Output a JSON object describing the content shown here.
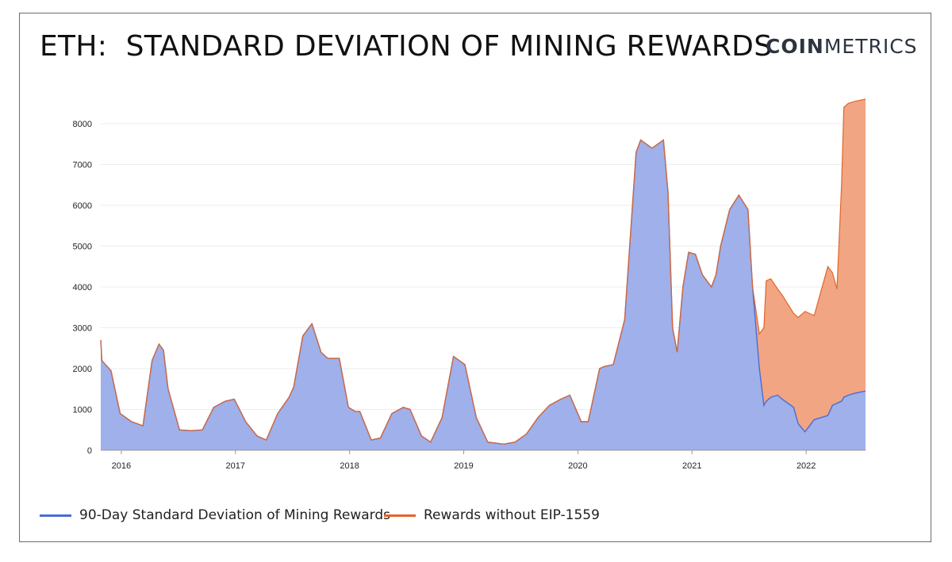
{
  "title": "ETH:  STANDARD DEVIATION OF MINING REWARDS",
  "logo": {
    "bold": "COIN",
    "rest": "METRICS",
    "icon": "coinmetrics-logo"
  },
  "colors": {
    "blue_line": "#4a6cd4",
    "blue_fill": "#9fb0ea",
    "orange_line": "#e0652a",
    "orange_fill": "#f2a582",
    "grid": "#ececec"
  },
  "chart_data": {
    "type": "area",
    "title": "ETH:  STANDARD DEVIATION OF MINING REWARDS",
    "xlabel": "",
    "ylabel": "",
    "ylim": [
      0,
      8700
    ],
    "xlim": [
      2015.82,
      2022.52
    ],
    "yticks": [
      0,
      1000,
      2000,
      3000,
      4000,
      5000,
      6000,
      7000,
      8000
    ],
    "xticks": [
      {
        "value": 2016,
        "label": "2016"
      },
      {
        "value": 2017,
        "label": "2017"
      },
      {
        "value": 2018,
        "label": "2018"
      },
      {
        "value": 2019,
        "label": "2019"
      },
      {
        "value": 2020,
        "label": "2020"
      },
      {
        "value": 2021,
        "label": "2021"
      },
      {
        "value": 2022,
        "label": "2022"
      }
    ],
    "grid": true,
    "legend_position": "bottom-left",
    "series": [
      {
        "name": "Rewards without EIP-1559",
        "color": "#e0652a",
        "x": [
          2015.82,
          2015.83,
          2015.86,
          2015.91,
          2015.99,
          2016.09,
          2016.19,
          2016.27,
          2016.33,
          2016.37,
          2016.41,
          2016.51,
          2016.61,
          2016.71,
          2016.81,
          2016.91,
          2016.99,
          2017.09,
          2017.19,
          2017.27,
          2017.37,
          2017.47,
          2017.51,
          2017.59,
          2017.67,
          2017.75,
          2017.81,
          2017.91,
          2017.99,
          2018.05,
          2018.09,
          2018.19,
          2018.27,
          2018.37,
          2018.47,
          2018.53,
          2018.63,
          2018.71,
          2018.81,
          2018.91,
          2019.01,
          2019.11,
          2019.21,
          2019.35,
          2019.45,
          2019.55,
          2019.65,
          2019.75,
          2019.85,
          2019.93,
          2020.03,
          2020.09,
          2020.19,
          2020.23,
          2020.31,
          2020.41,
          2020.51,
          2020.55,
          2020.65,
          2020.75,
          2020.79,
          2020.83,
          2020.87,
          2020.92,
          2020.97,
          2021.03,
          2021.09,
          2021.17,
          2021.21,
          2021.25,
          2021.33,
          2021.41,
          2021.49,
          2021.53,
          2021.59,
          2021.63,
          2021.65,
          2021.69,
          2021.75,
          2021.79,
          2021.89,
          2021.93,
          2021.99,
          2022.03,
          2022.07,
          2022.13,
          2022.19,
          2022.23,
          2022.27,
          2022.31,
          2022.33,
          2022.37,
          2022.43,
          2022.52
        ],
        "y": [
          2700,
          2200,
          2100,
          1950,
          900,
          700,
          600,
          2200,
          2600,
          2450,
          1500,
          500,
          480,
          500,
          1050,
          1200,
          1250,
          700,
          350,
          250,
          900,
          1300,
          1550,
          2800,
          3100,
          2400,
          2250,
          2250,
          1050,
          950,
          950,
          250,
          300,
          900,
          1050,
          1000,
          350,
          200,
          800,
          2300,
          2100,
          800,
          200,
          150,
          200,
          400,
          800,
          1100,
          1250,
          1350,
          700,
          700,
          2000,
          2050,
          2100,
          3200,
          7300,
          7600,
          7400,
          7600,
          6300,
          3000,
          2400,
          4000,
          4850,
          4800,
          4300,
          4000,
          4300,
          5000,
          5900,
          6250,
          5900,
          4000,
          2850,
          3000,
          4150,
          4200,
          3950,
          3800,
          3350,
          3250,
          3400,
          3350,
          3300,
          3900,
          4500,
          4350,
          3950,
          6500,
          8400,
          8500,
          8550,
          8600
        ]
      },
      {
        "name": "90-Day Standard Deviation of Mining Rewards",
        "color": "#4a6cd4",
        "x": [
          2015.82,
          2015.83,
          2015.86,
          2015.91,
          2015.99,
          2016.09,
          2016.19,
          2016.27,
          2016.33,
          2016.37,
          2016.41,
          2016.51,
          2016.61,
          2016.71,
          2016.81,
          2016.91,
          2016.99,
          2017.09,
          2017.19,
          2017.27,
          2017.37,
          2017.47,
          2017.51,
          2017.59,
          2017.67,
          2017.75,
          2017.81,
          2017.91,
          2017.99,
          2018.05,
          2018.09,
          2018.19,
          2018.27,
          2018.37,
          2018.47,
          2018.53,
          2018.63,
          2018.71,
          2018.81,
          2018.91,
          2019.01,
          2019.11,
          2019.21,
          2019.35,
          2019.45,
          2019.55,
          2019.65,
          2019.75,
          2019.85,
          2019.93,
          2020.03,
          2020.09,
          2020.19,
          2020.23,
          2020.31,
          2020.41,
          2020.51,
          2020.55,
          2020.65,
          2020.75,
          2020.79,
          2020.83,
          2020.87,
          2020.92,
          2020.97,
          2021.03,
          2021.09,
          2021.17,
          2021.21,
          2021.25,
          2021.33,
          2021.41,
          2021.49,
          2021.53,
          2021.59,
          2021.63,
          2021.65,
          2021.69,
          2021.75,
          2021.79,
          2021.89,
          2021.93,
          2021.99,
          2022.03,
          2022.07,
          2022.13,
          2022.19,
          2022.23,
          2022.27,
          2022.31,
          2022.33,
          2022.37,
          2022.43,
          2022.52
        ],
        "y": [
          2700,
          2200,
          2100,
          1950,
          900,
          700,
          600,
          2200,
          2600,
          2450,
          1500,
          500,
          480,
          500,
          1050,
          1200,
          1250,
          700,
          350,
          250,
          900,
          1300,
          1550,
          2800,
          3100,
          2400,
          2250,
          2250,
          1050,
          950,
          950,
          250,
          300,
          900,
          1050,
          1000,
          350,
          200,
          800,
          2300,
          2100,
          800,
          200,
          150,
          200,
          400,
          800,
          1100,
          1250,
          1350,
          700,
          700,
          2000,
          2050,
          2100,
          3200,
          7300,
          7600,
          7400,
          7600,
          6300,
          3000,
          2400,
          4000,
          4850,
          4800,
          4300,
          4000,
          4300,
          5000,
          5900,
          6250,
          5900,
          4000,
          2000,
          1100,
          1200,
          1300,
          1350,
          1250,
          1050,
          650,
          450,
          600,
          750,
          800,
          850,
          1100,
          1150,
          1200,
          1300,
          1350,
          1400,
          1450
        ]
      }
    ]
  },
  "legend": [
    {
      "label": "90-Day Standard Deviation of Mining Rewards",
      "color": "#4a6cd4"
    },
    {
      "label": "Rewards without EIP-1559",
      "color": "#e0652a"
    }
  ]
}
